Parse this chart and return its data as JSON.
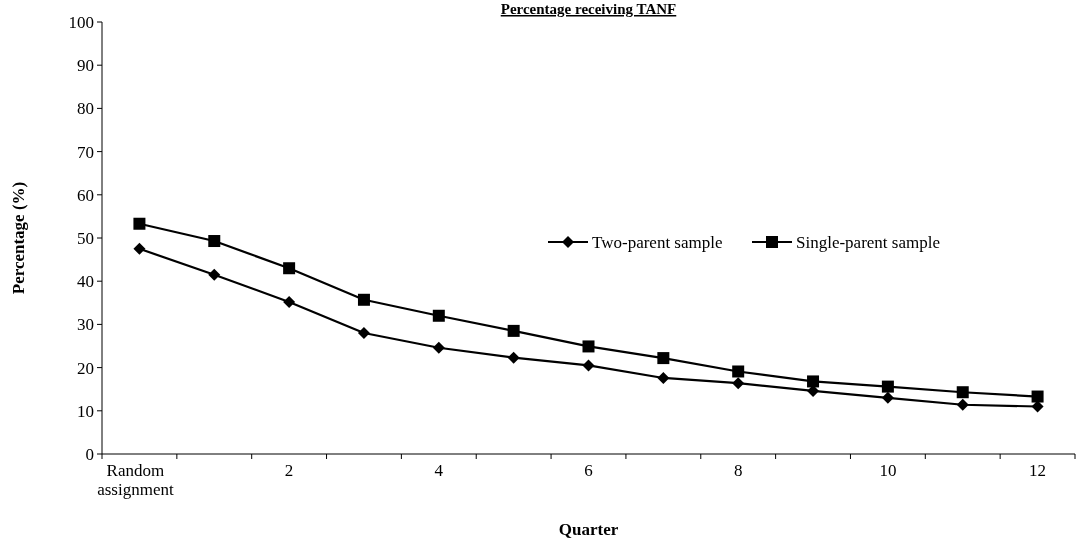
{
  "chart_data": {
    "type": "line",
    "title": "Percentage receiving TANF",
    "xlabel": "Quarter",
    "ylabel": "Percentage  (%)",
    "categories": [
      "Random assignment",
      null,
      "2",
      null,
      "4",
      null,
      "6",
      null,
      "8",
      null,
      "10",
      null,
      "12"
    ],
    "series": [
      {
        "name": "Two-parent sample",
        "color": "#000000",
        "marker": "diamond",
        "values": [
          47.5,
          41.5,
          35.2,
          28,
          24.6,
          22.3,
          20.5,
          17.6,
          16.4,
          14.6,
          13,
          11.4,
          11
        ]
      },
      {
        "name": "Single-parent sample",
        "color": "#000000",
        "marker": "square",
        "values": [
          53.3,
          49.3,
          43,
          35.7,
          32,
          28.5,
          24.9,
          22.2,
          19.1,
          16.8,
          15.6,
          14.3,
          13.3
        ]
      }
    ],
    "ylim": [
      0,
      100
    ],
    "yticks": [
      0,
      10,
      20,
      30,
      40,
      50,
      60,
      70,
      80,
      90,
      100
    ],
    "grid": false,
    "legend": "right",
    "line_style": "solid"
  }
}
